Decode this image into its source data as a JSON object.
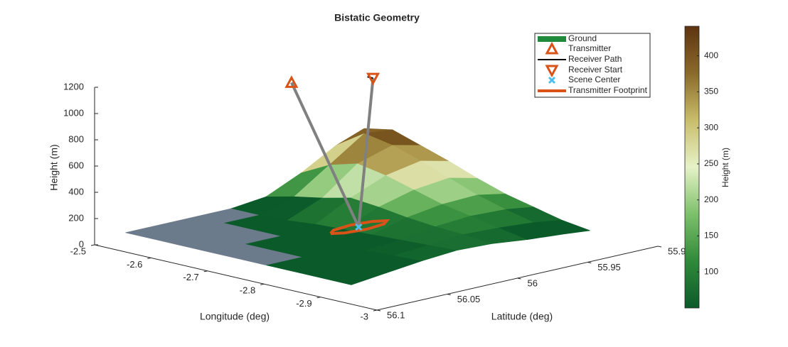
{
  "chart_data": {
    "type": "surface3d",
    "title": "Bistatic Geometry",
    "xlabel": "Longitude (deg)",
    "ylabel": "Latitude (deg)",
    "zlabel": "Height (m)",
    "xlim": [
      -3,
      -2.5
    ],
    "xticks": [
      -3,
      -2.9,
      -2.8,
      -2.7,
      -2.6,
      -2.5
    ],
    "ylim": [
      55.9,
      56.1
    ],
    "yticks": [
      55.9,
      55.95,
      56,
      56.05,
      56.1
    ],
    "zlim": [
      0,
      1200
    ],
    "zticks": [
      0,
      200,
      400,
      600,
      800,
      1000,
      1200
    ],
    "terrain": {
      "name": "Ground",
      "color": "#1f8a3c",
      "sea_color": "#6c7b8b",
      "colormap": [
        "#0b5a2a",
        "#2f8a3a",
        "#7dc06a",
        "#e6f2c8",
        "#c9bd6a",
        "#8a6a2a",
        "#5e3410"
      ],
      "lon": [
        -2.88,
        -2.83,
        -2.78,
        -2.73,
        -2.68,
        -2.63,
        -2.58,
        -2.53,
        -2.48
      ],
      "lat": [
        56.07,
        56.045,
        56.02,
        55.995,
        55.97,
        55.945,
        55.92,
        55.9
      ],
      "height": [
        [
          0,
          0,
          0,
          0,
          0,
          0,
          0,
          0,
          0
        ],
        [
          30,
          20,
          10,
          0,
          0,
          0,
          0,
          0,
          0
        ],
        [
          60,
          50,
          40,
          30,
          15,
          0,
          0,
          0,
          0
        ],
        [
          80,
          70,
          60,
          50,
          40,
          30,
          10,
          0,
          0
        ],
        [
          70,
          90,
          100,
          120,
          150,
          170,
          120,
          80,
          30
        ],
        [
          40,
          80,
          120,
          160,
          220,
          280,
          320,
          260,
          150
        ],
        [
          20,
          60,
          110,
          170,
          250,
          330,
          400,
          440,
          300
        ],
        [
          0,
          30,
          80,
          130,
          200,
          280,
          350,
          420,
          380
        ]
      ]
    },
    "colorbar": {
      "label": "Height (m)",
      "clim": [
        50,
        441
      ],
      "ticks": [
        100,
        150,
        200,
        250,
        300,
        350,
        400
      ]
    },
    "transmitter": {
      "name": "Transmitter",
      "lon": -2.6,
      "lat": 56.0,
      "height": 1092,
      "color": "#d95319"
    },
    "receiver_path": {
      "name": "Receiver Path",
      "lon": [
        -2.62,
        -2.61
      ],
      "lat": [
        55.95,
        55.95
      ],
      "height": [
        1024,
        1024
      ],
      "color": "#000000"
    },
    "receiver_start": {
      "name": "Receiver Start",
      "lon": -2.62,
      "lat": 55.95,
      "height": 1024,
      "color": "#d95319"
    },
    "scene_center": {
      "name": "Scene Center",
      "lon": -2.694,
      "lat": 55.99,
      "height": 60,
      "color": "#4dbeee"
    },
    "footprint": {
      "name": "Transmitter Footprint",
      "color": "#d95319",
      "height": 60,
      "lon": [
        -2.694,
        -2.684,
        -2.679,
        -2.684,
        -2.694,
        -2.704,
        -2.709,
        -2.704,
        -2.694
      ],
      "lat": [
        56.01,
        56.004,
        55.99,
        55.976,
        55.97,
        55.976,
        55.99,
        56.004,
        56.01
      ]
    },
    "sight_line_color": "#808080",
    "legend": "northeast"
  }
}
